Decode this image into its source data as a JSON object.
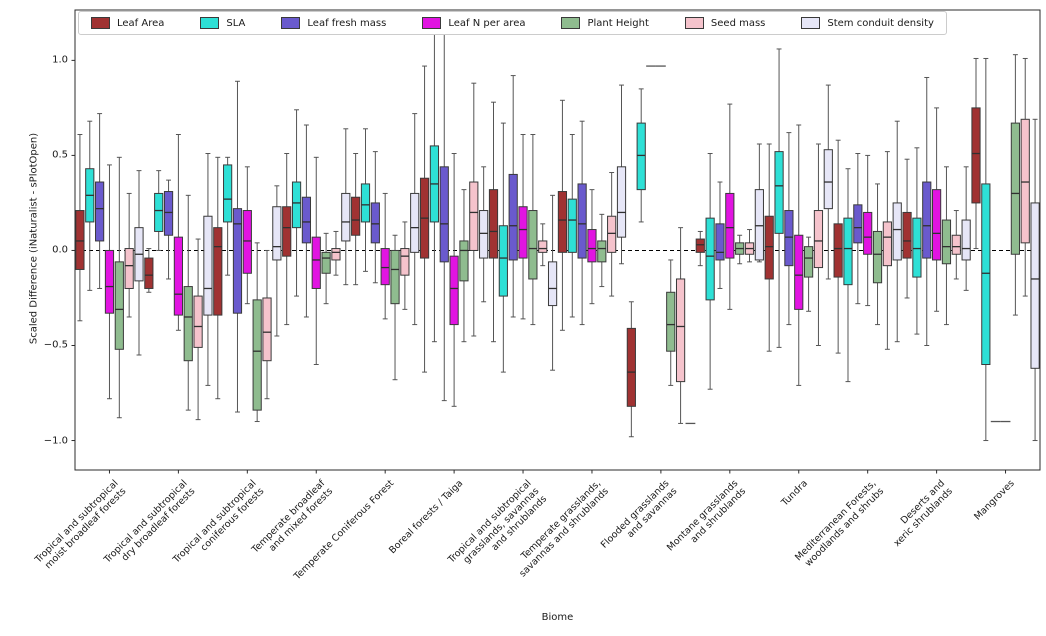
{
  "chart_data": {
    "type": "boxplot",
    "title": "",
    "xlabel": "Biome",
    "ylabel": "Scaled Difference (iNaturalist - sPlotOpen)",
    "ylim": [
      -1.155,
      1.265
    ],
    "yticks": [
      1.0,
      0.5,
      0.0,
      -0.5,
      -1.0
    ],
    "ytick_labels": [
      "1.0",
      "0.5",
      "0.0",
      "−0.5",
      "−1.0"
    ],
    "zero_line": {
      "value": 0,
      "style": "dashed",
      "color": "#000000"
    },
    "grid": false,
    "legend_position": "top-inside",
    "box_format": [
      "whisker_low",
      "q1",
      "median",
      "q3",
      "whisker_high"
    ],
    "categories": [
      "Tropical and subtropical\nmoist broadleaf forests",
      "Tropical and subtropical\ndry broadleaf forests",
      "Tropical and subtropical\nconiferous forests",
      "Temperate broadleaf\nand mixed forests",
      "Temperate Coniferous Forest",
      "Boreal forests / Taiga",
      "Tropical and subtropical\ngrasslands, savannas\nand shrublands",
      "Temperate grasslands,\nsavannas and shrublands",
      "Flooded grasslands\nand savannas",
      "Montane grasslands\nand shrublands",
      "Tundra",
      "Mediterranean Forests,\nwoodlands and shrubs",
      "Deserts and\nxeric shrublands",
      "Mangroves"
    ],
    "series": [
      {
        "name": "Leaf Area",
        "color": "#a03232",
        "boxes": [
          [
            -0.37,
            -0.1,
            0.05,
            0.21,
            0.61
          ],
          [
            -0.22,
            -0.2,
            -0.13,
            -0.04,
            0.01
          ],
          [
            -0.78,
            -0.34,
            0.02,
            0.12,
            0.49
          ],
          [
            -0.39,
            -0.03,
            0.12,
            0.23,
            0.51
          ],
          [
            -0.18,
            0.08,
            0.16,
            0.28,
            0.51
          ],
          [
            -0.64,
            -0.04,
            0.17,
            0.38,
            0.97
          ],
          [
            -0.48,
            -0.04,
            0.1,
            0.32,
            0.78
          ],
          [
            -0.42,
            -0.01,
            0.16,
            0.31,
            0.79
          ],
          [
            -0.98,
            -0.82,
            -0.64,
            -0.41,
            -0.27
          ],
          [
            -0.08,
            -0.01,
            0.03,
            0.06,
            0.1
          ],
          [
            -0.53,
            -0.15,
            0.02,
            0.18,
            0.56
          ],
          [
            -0.54,
            -0.14,
            0.01,
            0.14,
            0.58
          ],
          [
            -0.25,
            -0.04,
            0.05,
            0.2,
            0.48
          ],
          [
            0.01,
            0.25,
            0.51,
            0.75,
            1.01
          ]
        ]
      },
      {
        "name": "SLA",
        "color": "#2ee0d6",
        "boxes": [
          [
            -0.21,
            0.15,
            0.29,
            0.43,
            0.68
          ],
          [
            0.0,
            0.1,
            0.21,
            0.3,
            0.42
          ],
          [
            -0.13,
            0.15,
            0.27,
            0.45,
            0.49
          ],
          [
            -0.24,
            0.12,
            0.25,
            0.36,
            0.74
          ],
          [
            -0.11,
            0.15,
            0.24,
            0.35,
            0.64
          ],
          [
            -0.48,
            0.15,
            0.35,
            0.55,
            1.22
          ],
          [
            -0.64,
            -0.24,
            -0.04,
            0.13,
            0.67
          ],
          [
            -0.35,
            -0.01,
            0.16,
            0.27,
            0.61
          ],
          [
            0.15,
            0.32,
            0.5,
            0.67,
            0.85
          ],
          [
            -0.73,
            -0.26,
            -0.03,
            0.17,
            0.51
          ],
          [
            -0.51,
            0.09,
            0.34,
            0.52,
            1.06
          ],
          [
            -0.69,
            -0.18,
            0.01,
            0.17,
            0.43
          ],
          [
            -0.44,
            -0.14,
            0.01,
            0.17,
            0.54
          ],
          [
            -1.0,
            -0.6,
            -0.12,
            0.35,
            1.01
          ]
        ]
      },
      {
        "name": "Leaf fresh mass",
        "color": "#6a5acd",
        "boxes": [
          [
            -0.2,
            0.05,
            0.22,
            0.36,
            0.72
          ],
          [
            -0.15,
            0.08,
            0.2,
            0.31,
            0.37
          ],
          [
            -0.85,
            -0.33,
            0.14,
            0.22,
            0.89
          ],
          [
            -0.35,
            0.04,
            0.15,
            0.28,
            0.66
          ],
          [
            -0.17,
            0.04,
            0.14,
            0.25,
            0.52
          ],
          [
            -0.79,
            -0.06,
            0.14,
            0.44,
            1.14
          ],
          [
            -0.35,
            -0.05,
            0.13,
            0.4,
            0.92
          ],
          [
            -0.39,
            -0.04,
            0.14,
            0.35,
            0.68
          ],
          [
            0.97,
            0.97,
            0.97,
            0.97,
            0.97
          ],
          [
            -0.2,
            -0.05,
            -0.01,
            0.14,
            0.36
          ],
          [
            -0.39,
            -0.08,
            0.07,
            0.21,
            0.62
          ],
          [
            -0.28,
            0.04,
            0.12,
            0.24,
            0.51
          ],
          [
            -0.5,
            -0.04,
            0.13,
            0.36,
            0.91
          ],
          [
            -0.9,
            -0.9,
            -0.9,
            -0.9,
            -0.9
          ]
        ]
      },
      {
        "name": "Leaf N per area",
        "color": "#e114e1",
        "boxes": [
          [
            -0.78,
            -0.33,
            -0.19,
            0.0,
            0.45
          ],
          [
            -0.42,
            -0.34,
            -0.23,
            0.07,
            0.61
          ],
          [
            -0.28,
            -0.12,
            0.05,
            0.21,
            0.44
          ],
          [
            -0.6,
            -0.2,
            -0.05,
            0.07,
            0.49
          ],
          [
            -0.36,
            -0.18,
            -0.09,
            0.01,
            0.3
          ],
          [
            -0.82,
            -0.39,
            -0.2,
            -0.03,
            0.51
          ],
          [
            -0.36,
            -0.04,
            0.11,
            0.23,
            0.61
          ],
          [
            -0.28,
            -0.06,
            0.01,
            0.11,
            0.32
          ],
          [
            0.97,
            0.97,
            0.97,
            0.97,
            0.97
          ],
          [
            -0.31,
            -0.04,
            0.12,
            0.3,
            0.77
          ],
          [
            -0.71,
            -0.31,
            -0.13,
            0.08,
            0.66
          ],
          [
            -0.29,
            -0.02,
            0.07,
            0.2,
            0.5
          ],
          [
            -0.32,
            -0.05,
            0.09,
            0.32,
            0.75
          ],
          [
            -0.9,
            -0.9,
            -0.9,
            -0.9,
            -0.9
          ]
        ]
      },
      {
        "name": "Plant Height",
        "color": "#8fbc8f",
        "boxes": [
          [
            -0.88,
            -0.52,
            -0.31,
            -0.06,
            0.49
          ],
          [
            -0.84,
            -0.58,
            -0.35,
            -0.19,
            0.29
          ],
          [
            -0.9,
            -0.84,
            -0.53,
            -0.26,
            0.04
          ],
          [
            -0.28,
            -0.12,
            -0.04,
            -0.01,
            0.09
          ],
          [
            -0.68,
            -0.28,
            -0.1,
            0.0,
            0.08
          ],
          [
            -0.48,
            -0.16,
            0.0,
            0.05,
            0.32
          ],
          [
            -0.39,
            -0.15,
            0.01,
            0.21,
            0.61
          ],
          [
            -0.19,
            -0.06,
            0.01,
            0.05,
            0.19
          ],
          [
            -0.71,
            -0.53,
            -0.39,
            -0.22,
            -0.05
          ],
          [
            -0.07,
            -0.02,
            0.01,
            0.04,
            0.08
          ],
          [
            -0.32,
            -0.14,
            -0.04,
            0.02,
            0.07
          ],
          [
            -0.39,
            -0.17,
            -0.02,
            0.1,
            0.35
          ],
          [
            -0.39,
            -0.07,
            0.02,
            0.16,
            0.44
          ],
          [
            -0.34,
            -0.02,
            0.3,
            0.67,
            1.03
          ]
        ]
      },
      {
        "name": "Seed mass",
        "color": "#f5c3cc",
        "boxes": [
          [
            -0.35,
            -0.2,
            -0.08,
            0.01,
            0.3
          ],
          [
            -0.89,
            -0.51,
            -0.4,
            -0.24,
            0.06
          ],
          [
            -0.78,
            -0.58,
            -0.43,
            -0.25,
            0.0
          ],
          [
            -0.13,
            -0.05,
            -0.01,
            0.01,
            0.1
          ],
          [
            -0.31,
            -0.13,
            -0.03,
            0.01,
            0.15
          ],
          [
            -0.45,
            0.0,
            0.2,
            0.36,
            0.88
          ],
          [
            -0.08,
            -0.01,
            0.01,
            0.05,
            0.14
          ],
          [
            -0.24,
            -0.01,
            0.09,
            0.18,
            0.41
          ],
          [
            -0.91,
            -0.69,
            -0.4,
            -0.15,
            0.12
          ],
          [
            -0.06,
            -0.02,
            0.01,
            0.04,
            0.11
          ],
          [
            -0.5,
            -0.09,
            0.05,
            0.21,
            0.56
          ],
          [
            -0.52,
            -0.08,
            0.07,
            0.15,
            0.52
          ],
          [
            -0.15,
            -0.02,
            0.02,
            0.08,
            0.21
          ],
          [
            -0.24,
            0.04,
            0.36,
            0.69,
            1.01
          ]
        ]
      },
      {
        "name": "Stem conduit density",
        "color": "#e6e6f7",
        "boxes": [
          [
            -0.55,
            -0.16,
            -0.02,
            0.12,
            0.42
          ],
          [
            -0.71,
            -0.34,
            -0.2,
            0.18,
            0.51
          ],
          [
            -0.45,
            -0.05,
            0.02,
            0.23,
            0.34
          ],
          [
            -0.18,
            0.05,
            0.15,
            0.3,
            0.64
          ],
          [
            -0.39,
            -0.01,
            0.12,
            0.3,
            0.72
          ],
          [
            -0.27,
            -0.04,
            0.09,
            0.21,
            0.44
          ],
          [
            -0.63,
            -0.29,
            -0.2,
            -0.06,
            0.29
          ],
          [
            -0.07,
            0.07,
            0.2,
            0.44,
            0.87
          ],
          [
            -0.91,
            -0.91,
            -0.91,
            -0.91,
            -0.91
          ],
          [
            -0.06,
            -0.05,
            0.13,
            0.32,
            0.56
          ],
          [
            -0.15,
            0.22,
            0.36,
            0.53,
            0.87
          ],
          [
            -0.48,
            -0.05,
            0.11,
            0.25,
            0.68
          ],
          [
            -0.21,
            -0.05,
            0.01,
            0.16,
            0.44
          ],
          [
            -1.0,
            -0.62,
            -0.15,
            0.25,
            0.69
          ]
        ]
      }
    ]
  },
  "style": {
    "whisker_color": "#555555",
    "box_edge_color": "#3a3a3a",
    "median_color": "#303030",
    "axes_color": "#2b2b2b"
  }
}
